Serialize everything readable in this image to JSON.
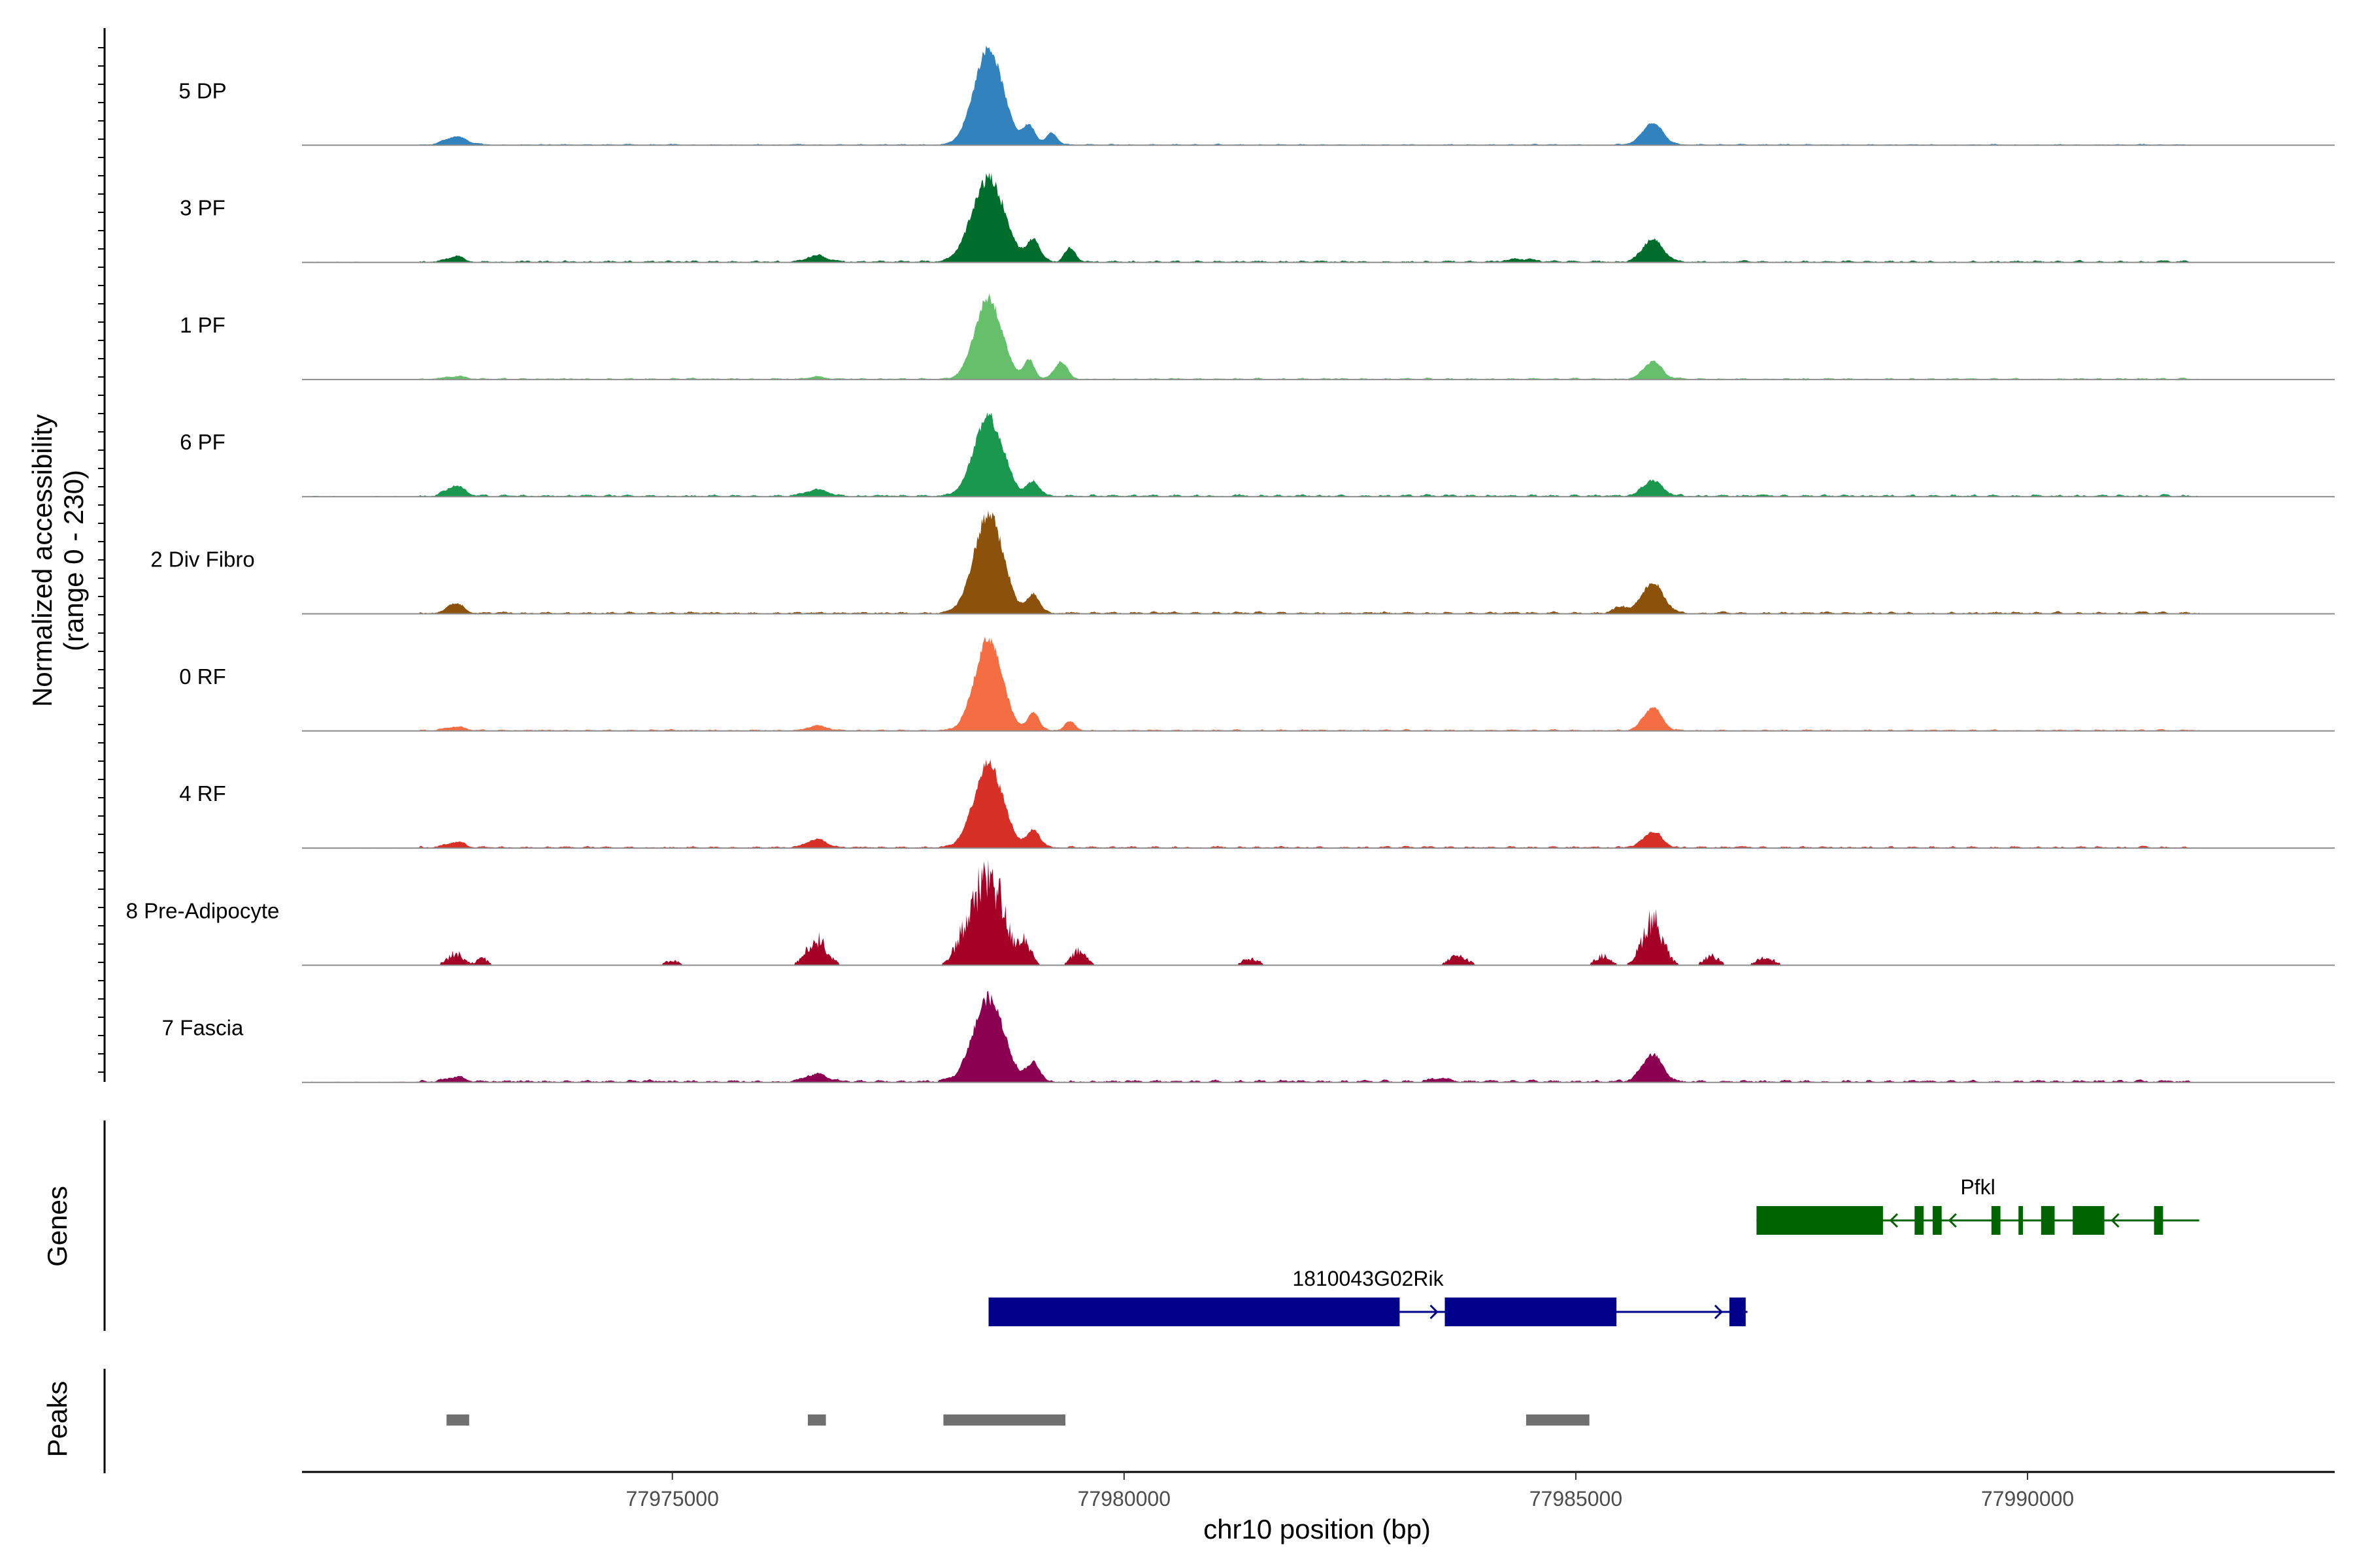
{
  "chart_data": {
    "type": "area",
    "title": "",
    "chromosome": "chr10",
    "xlabel": "chr10 position (bp)",
    "ylabel_lines": [
      "Normalized accessibility",
      "(range 0 - 230)"
    ],
    "ylim": [
      0,
      230
    ],
    "xlim": [
      77970900,
      77993400
    ],
    "x_ticks": [
      77975000,
      77980000,
      77985000,
      77990000
    ],
    "x_tick_labels": [
      "77975000",
      "77980000",
      "77985000",
      "77990000"
    ],
    "tracks": [
      {
        "name": "5 DP",
        "color": "#3182BD",
        "signal_end": 77991900,
        "peaks": [
          [
            77972600,
            18,
            120
          ],
          [
            77978500,
            210,
            160
          ],
          [
            77978950,
            40,
            70
          ],
          [
            77979200,
            25,
            60
          ],
          [
            77985850,
            48,
            110
          ]
        ],
        "noise": 2.0,
        "rough": 0.05
      },
      {
        "name": "3 PF",
        "color": "#006D2C",
        "signal_end": 77991900,
        "peaks": [
          [
            77972600,
            12,
            90
          ],
          [
            77976600,
            14,
            110
          ],
          [
            77978500,
            180,
            180
          ],
          [
            77979000,
            45,
            70
          ],
          [
            77979400,
            30,
            60
          ],
          [
            77985850,
            50,
            110
          ],
          [
            77984400,
            6,
            140
          ]
        ],
        "noise": 3.0,
        "rough": 0.08
      },
      {
        "name": "1 PF",
        "color": "#66C06B",
        "signal_end": 77991900,
        "peaks": [
          [
            77972600,
            6,
            100
          ],
          [
            77976600,
            6,
            90
          ],
          [
            77978500,
            175,
            150
          ],
          [
            77978950,
            40,
            60
          ],
          [
            77979300,
            38,
            70
          ],
          [
            77985850,
            38,
            100
          ]
        ],
        "noise": 2.5,
        "rough": 0.06
      },
      {
        "name": "6 PF",
        "color": "#1A9850",
        "signal_end": 77991900,
        "peaks": [
          [
            77972600,
            22,
            100
          ],
          [
            77976600,
            14,
            120
          ],
          [
            77978500,
            170,
            160
          ],
          [
            77979000,
            30,
            70
          ],
          [
            77985850,
            32,
            110
          ]
        ],
        "noise": 3.5,
        "rough": 0.08
      },
      {
        "name": "2 Div Fibro",
        "color": "#8C510A",
        "signal_end": 77991900,
        "peaks": [
          [
            77972600,
            22,
            90
          ],
          [
            77978500,
            215,
            160
          ],
          [
            77979000,
            40,
            70
          ],
          [
            77985850,
            65,
            120
          ],
          [
            77985500,
            14,
            80
          ]
        ],
        "noise": 3.5,
        "rough": 0.08
      },
      {
        "name": "0 RF",
        "color": "#F46D43",
        "signal_end": 77991900,
        "peaks": [
          [
            77972600,
            8,
            100
          ],
          [
            77976600,
            10,
            110
          ],
          [
            77978500,
            200,
            150
          ],
          [
            77979000,
            40,
            60
          ],
          [
            77979400,
            20,
            60
          ],
          [
            77985850,
            50,
            100
          ]
        ],
        "noise": 2.5,
        "rough": 0.06
      },
      {
        "name": "4 RF",
        "color": "#D73027",
        "signal_end": 77991900,
        "peaks": [
          [
            77972600,
            12,
            100
          ],
          [
            77976600,
            18,
            110
          ],
          [
            77978500,
            180,
            160
          ],
          [
            77979000,
            38,
            70
          ],
          [
            77985850,
            35,
            100
          ]
        ],
        "noise": 3.0,
        "rough": 0.07
      },
      {
        "name": "8 Pre-Adipocyte",
        "color": "#A50026",
        "signal_end": 77991900,
        "peaks": [
          [
            77972600,
            25,
            90
          ],
          [
            77972900,
            14,
            60
          ],
          [
            77976600,
            55,
            110
          ],
          [
            77978500,
            200,
            160
          ],
          [
            77978200,
            40,
            90
          ],
          [
            77978900,
            50,
            70
          ],
          [
            77979500,
            30,
            80
          ],
          [
            77985850,
            100,
            110
          ],
          [
            77985300,
            20,
            80
          ],
          [
            77981400,
            14,
            90
          ],
          [
            77983700,
            20,
            100
          ],
          [
            77987100,
            18,
            90
          ],
          [
            77975000,
            10,
            80
          ],
          [
            77986500,
            20,
            80
          ]
        ],
        "noise": 0.5,
        "rough": 0.35,
        "gaps": true
      },
      {
        "name": "7 Fascia",
        "color": "#8B0051",
        "signal_end": 77991900,
        "peaks": [
          [
            77972600,
            10,
            100
          ],
          [
            77976600,
            16,
            120
          ],
          [
            77978500,
            180,
            170
          ],
          [
            77979000,
            40,
            70
          ],
          [
            77985850,
            60,
            110
          ],
          [
            77983500,
            8,
            100
          ]
        ],
        "noise": 4.0,
        "rough": 0.09
      }
    ],
    "genes_track": {
      "label": "Genes",
      "genes": [
        {
          "name": "Pfkl",
          "strand": "-",
          "color": "#006400",
          "start": 77987000,
          "end": 77991900,
          "exons": [
            [
              77987000,
              77988400
            ],
            [
              77988750,
              77988850
            ],
            [
              77988950,
              77989050
            ],
            [
              77989600,
              77989700
            ],
            [
              77989900,
              77989950
            ],
            [
              77990150,
              77990300
            ],
            [
              77990500,
              77990850
            ],
            [
              77991400,
              77991500
            ]
          ]
        },
        {
          "name": "1810043G02Rik",
          "strand": "+",
          "color": "#00008B",
          "start": 77978500,
          "end": 77986900,
          "exons": [
            [
              77978500,
              77983050
            ],
            [
              77983550,
              77985450
            ],
            [
              77986700,
              77986880
            ]
          ]
        }
      ]
    },
    "peaks_track": {
      "label": "Peaks",
      "color": "#707070",
      "regions": [
        [
          77972500,
          77972750
        ],
        [
          77976500,
          77976700
        ],
        [
          77978000,
          77979350
        ],
        [
          77984450,
          77985150
        ]
      ]
    }
  }
}
